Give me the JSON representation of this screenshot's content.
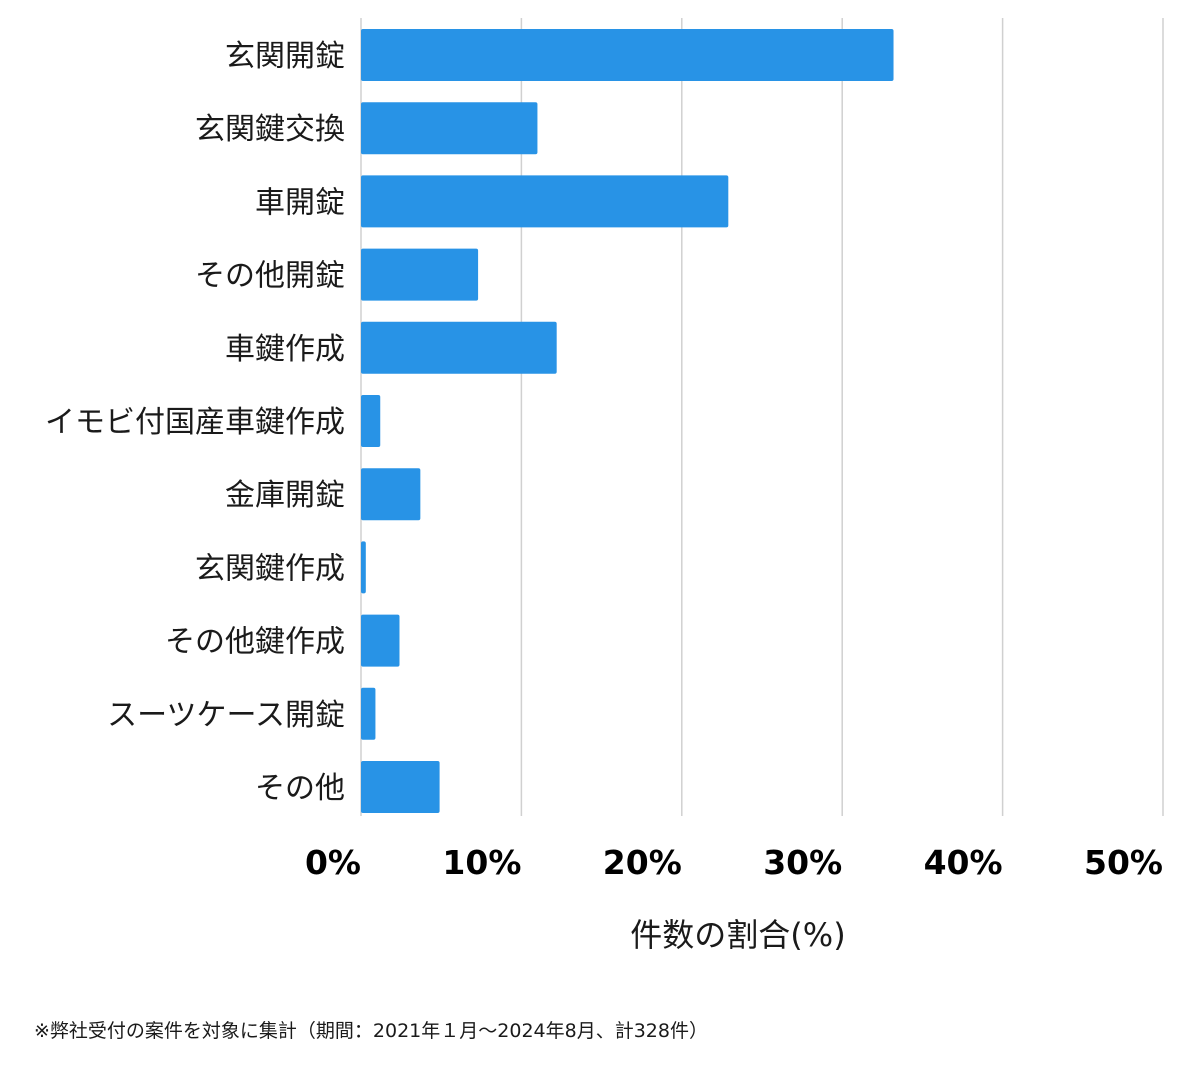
{
  "chart_data": {
    "type": "bar",
    "orientation": "horizontal",
    "categories": [
      "玄関開錠",
      "玄関鍵交換",
      "車開錠",
      "その他開錠",
      "車鍵作成",
      "イモビ付国産車鍵作成",
      "金庫開錠",
      "玄関鍵作成",
      "その他鍵作成",
      "スーツケース開錠",
      "その他"
    ],
    "values": [
      33.2,
      11.0,
      22.9,
      7.3,
      12.2,
      1.2,
      3.7,
      0.3,
      2.4,
      0.9,
      4.9
    ],
    "xlim": [
      0,
      50
    ],
    "xticks": [
      0,
      10,
      20,
      30,
      40,
      50
    ],
    "xtick_labels": [
      "0%",
      "10%",
      "20%",
      "30%",
      "40%",
      "50%"
    ],
    "xlabel": "件数の割合(%)",
    "ylabel": "",
    "title": "",
    "grid": "vertical",
    "bar_color": "#2893e6",
    "grid_color": "#d0d0d0"
  },
  "footnote": "※弊社受付の案件を対象に集計（期間：2021年１月〜2024年8月、計328件）"
}
